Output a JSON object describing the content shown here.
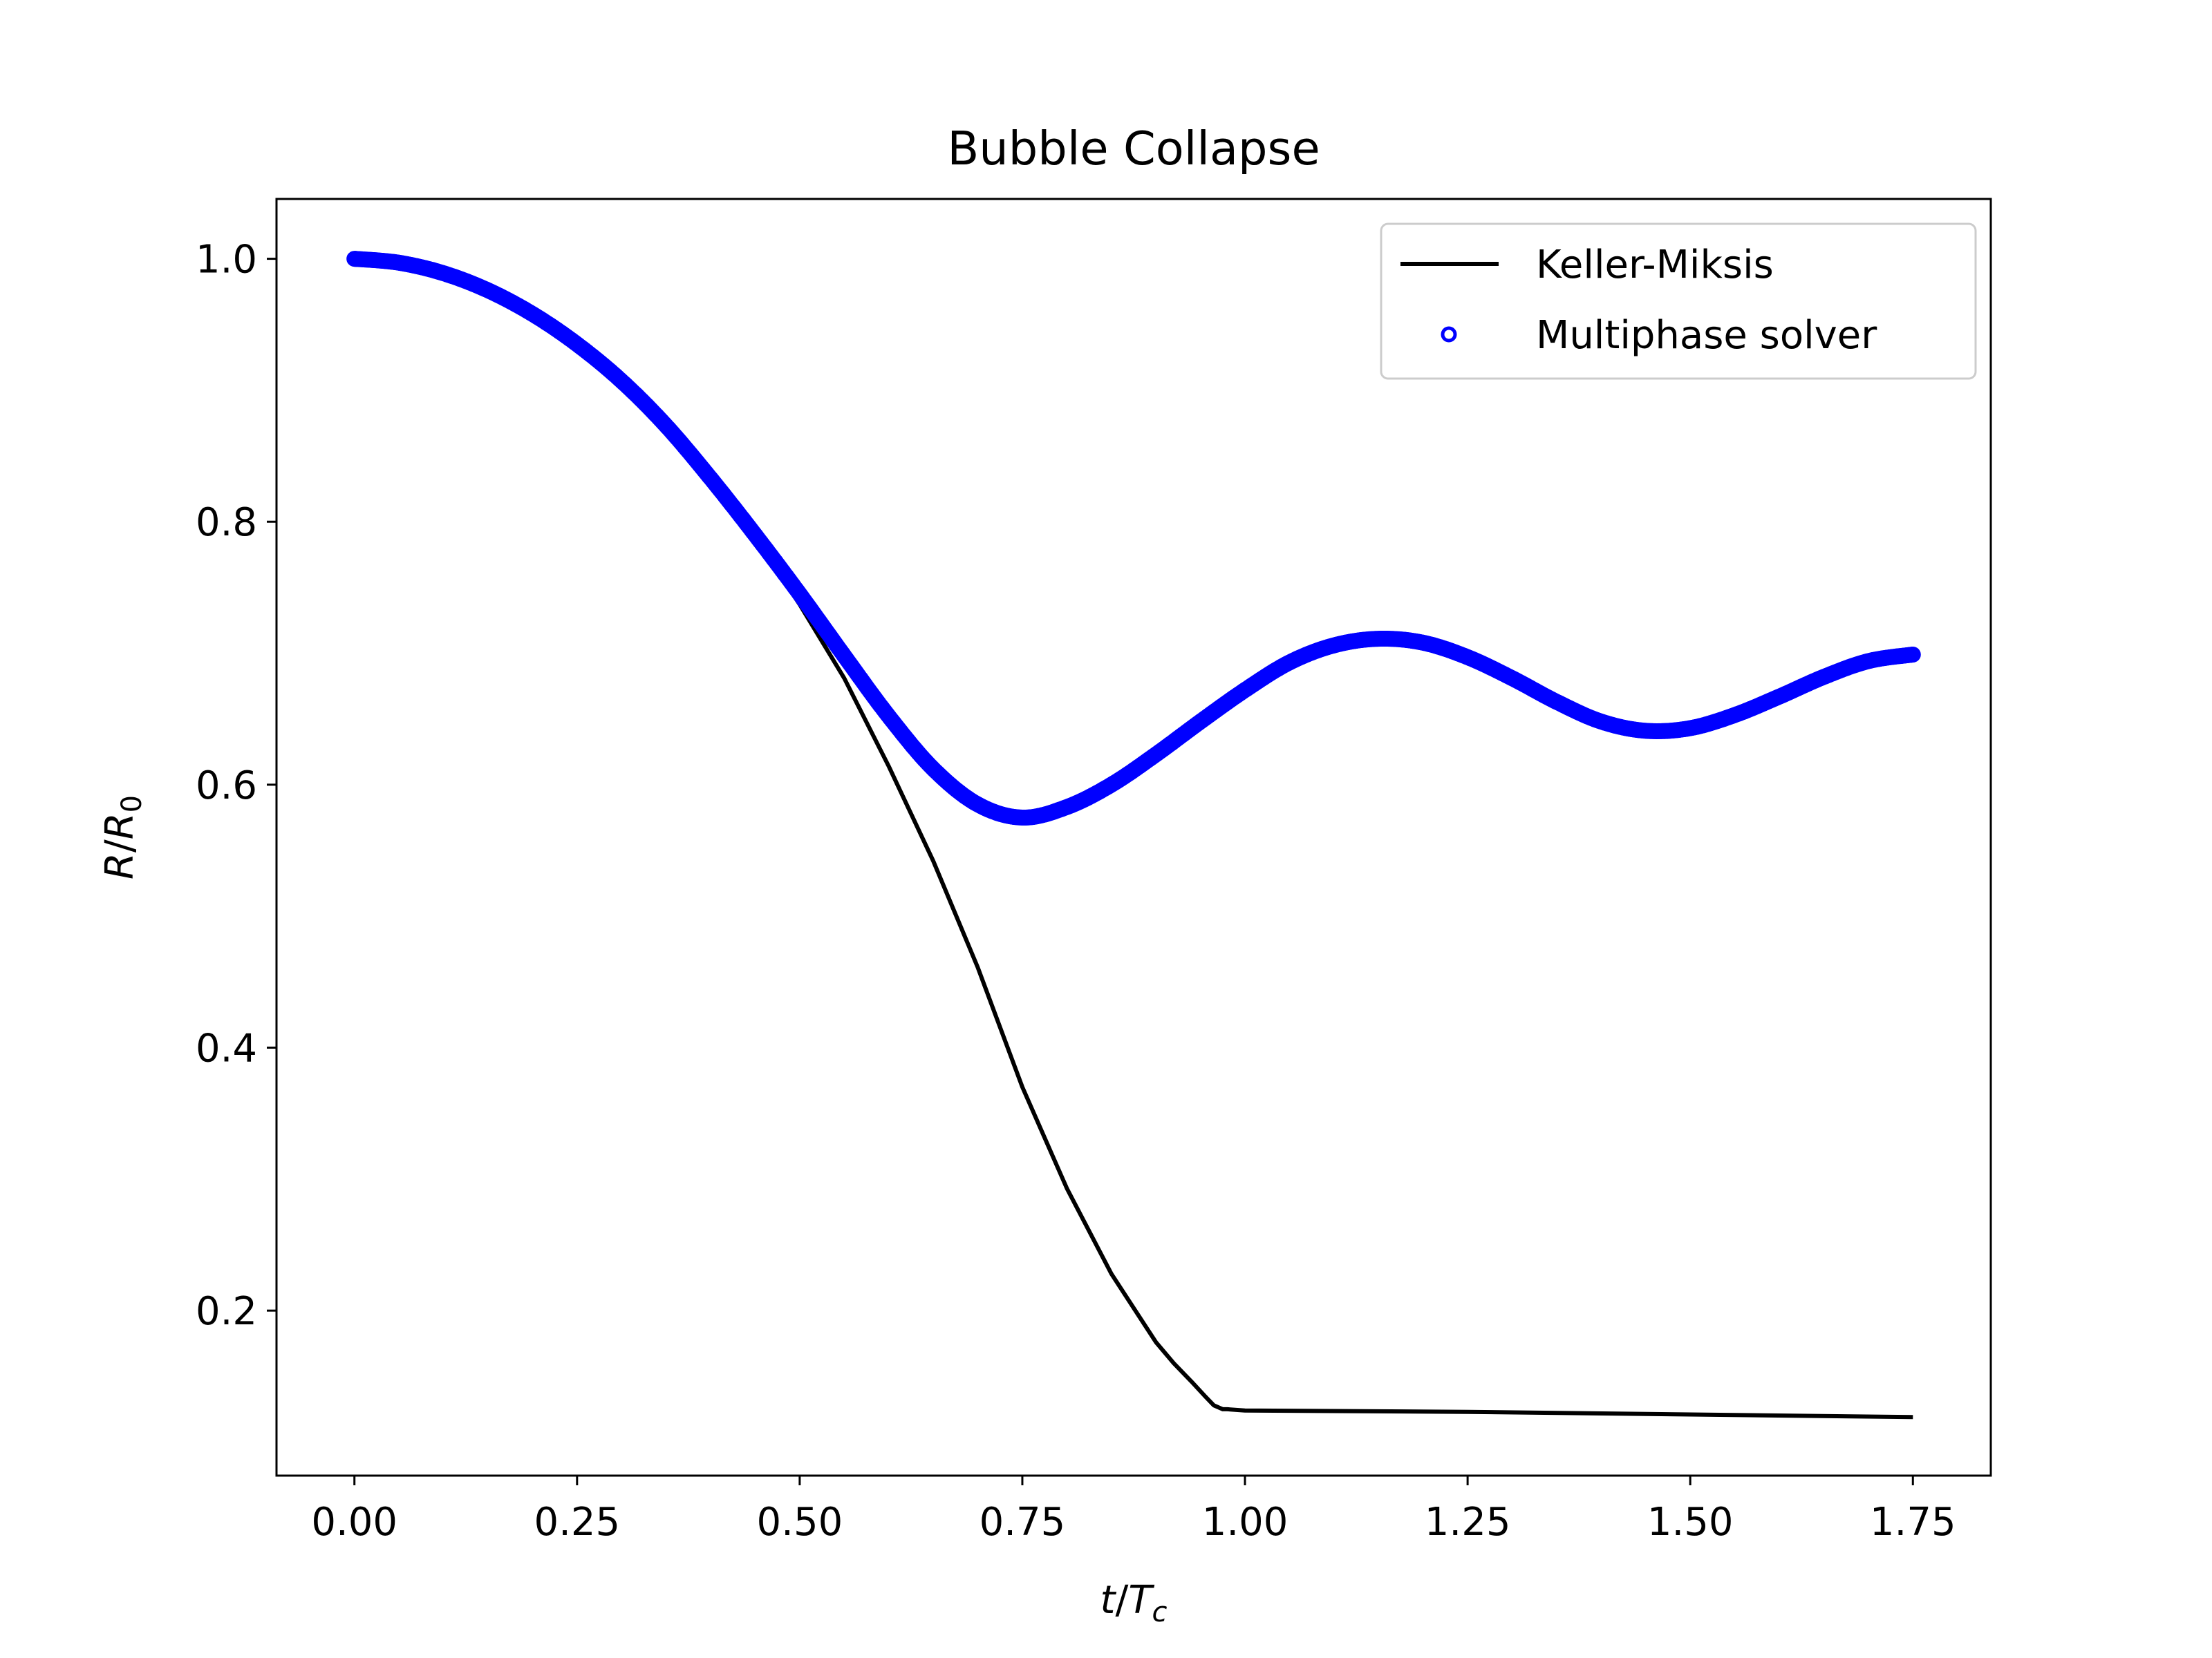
{
  "chart_data": {
    "type": "line",
    "title": "Bubble Collapse",
    "xlabel": {
      "main": "t",
      "sep": "/",
      "sym": "T",
      "sub": "c"
    },
    "ylabel": {
      "main": "R",
      "sep": "/",
      "sym": "R",
      "sub": "0"
    },
    "xlim": [
      -0.0875,
      1.8375
    ],
    "ylim": [
      0.0745,
      1.0455
    ],
    "xticks": [
      0.0,
      0.25,
      0.5,
      0.75,
      1.0,
      1.25,
      1.5,
      1.75
    ],
    "xtick_labels": [
      "0.00",
      "0.25",
      "0.50",
      "0.75",
      "1.00",
      "1.25",
      "1.50",
      "1.75"
    ],
    "yticks": [
      0.2,
      0.4,
      0.6,
      0.8,
      1.0
    ],
    "ytick_labels": [
      "0.2",
      "0.4",
      "0.6",
      "0.8",
      "1.0"
    ],
    "legend_position": "top-right",
    "series": [
      {
        "name": "Keller-Miksis",
        "style": "line",
        "color": "#000000",
        "x": [
          0,
          0.05,
          0.1,
          0.15,
          0.2,
          0.25,
          0.3,
          0.35,
          0.4,
          0.45,
          0.5,
          0.55,
          0.6,
          0.65,
          0.7,
          0.75,
          0.8,
          0.85,
          0.9,
          0.92,
          0.94,
          0.955,
          0.965,
          0.975,
          0.98,
          1.0,
          1.25,
          1.5,
          1.75
        ],
        "y": [
          1.0,
          0.997,
          0.989,
          0.976,
          0.958,
          0.935,
          0.907,
          0.873,
          0.833,
          0.788,
          0.737,
          0.681,
          0.614,
          0.542,
          0.461,
          0.37,
          0.293,
          0.228,
          0.176,
          0.16,
          0.146,
          0.135,
          0.128,
          0.125,
          0.125,
          0.124,
          0.123,
          0.121,
          0.119
        ]
      },
      {
        "name": "Multiphase solver",
        "style": "markers",
        "color": "#0000ff",
        "x": [
          0,
          0.05,
          0.1,
          0.15,
          0.2,
          0.25,
          0.3,
          0.35,
          0.4,
          0.45,
          0.5,
          0.55,
          0.6,
          0.65,
          0.7,
          0.75,
          0.8,
          0.85,
          0.9,
          0.95,
          1.0,
          1.05,
          1.1,
          1.15,
          1.2,
          1.25,
          1.3,
          1.35,
          1.4,
          1.45,
          1.5,
          1.55,
          1.6,
          1.65,
          1.7,
          1.75
        ],
        "y": [
          1.0,
          0.997,
          0.989,
          0.976,
          0.958,
          0.935,
          0.907,
          0.873,
          0.833,
          0.79,
          0.745,
          0.698,
          0.652,
          0.612,
          0.585,
          0.575,
          0.583,
          0.6,
          0.623,
          0.648,
          0.672,
          0.693,
          0.706,
          0.711,
          0.708,
          0.697,
          0.681,
          0.663,
          0.648,
          0.641,
          0.643,
          0.653,
          0.667,
          0.682,
          0.694,
          0.699
        ]
      }
    ]
  }
}
